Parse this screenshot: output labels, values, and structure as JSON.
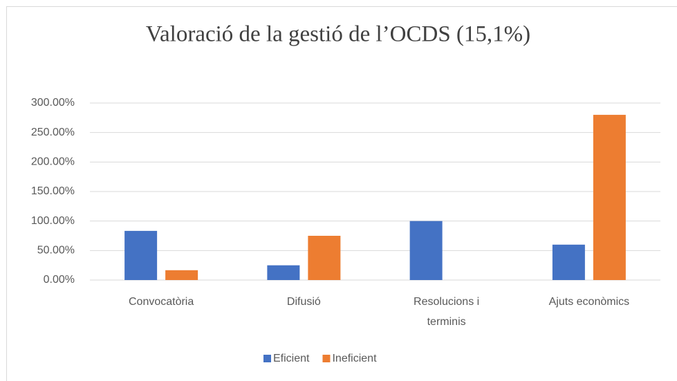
{
  "chart_data": {
    "type": "bar",
    "title": "Valoració de la gestió de l’OCDS (15,1%)",
    "categories": [
      "Convocatòria",
      "Difusió",
      "Resolucions i terminis",
      "Ajuts econòmics"
    ],
    "series": [
      {
        "name": "Eficient",
        "color": "#4472c4",
        "values": [
          83.33,
          25,
          100,
          60
        ]
      },
      {
        "name": "Ineficient",
        "color": "#ed7d31",
        "values": [
          16.67,
          75,
          0,
          280
        ]
      }
    ],
    "ylim": [
      0,
      300
    ],
    "yticks": [
      {
        "value": 0,
        "label": "0.00%"
      },
      {
        "value": 50,
        "label": "50.00%"
      },
      {
        "value": 100,
        "label": "100.00%"
      },
      {
        "value": 150,
        "label": "150.00%"
      },
      {
        "value": 200,
        "label": "200.00%"
      },
      {
        "value": 250,
        "label": "250.00%"
      },
      {
        "value": 300,
        "label": "300.00%"
      }
    ],
    "grid": true,
    "legend": "bottom"
  }
}
